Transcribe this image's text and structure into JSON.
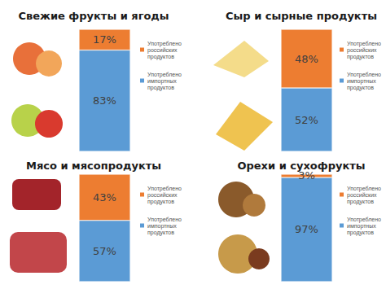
{
  "chart_data": [
    {
      "type": "bar",
      "title": "Свежие фрукты и ягоды",
      "stacked": true,
      "data_labels": true,
      "tick_labels": false,
      "legend": "right",
      "categories": [
        null
      ],
      "ylim": [
        0,
        100
      ],
      "series": [
        {
          "name": "Употреблено импортных продуктов",
          "color": "#5b9bd5",
          "values": [
            83
          ],
          "value_labels": [
            "83%"
          ]
        },
        {
          "name": "Употреблено российских продуктов",
          "color": "#ed7d31",
          "values": [
            17
          ],
          "value_labels": [
            "17%"
          ]
        }
      ]
    },
    {
      "type": "bar",
      "title": "Сыр и сырные продукты",
      "stacked": true,
      "data_labels": true,
      "tick_labels": false,
      "legend": "right",
      "categories": [
        null
      ],
      "ylim": [
        0,
        100
      ],
      "series": [
        {
          "name": "Употреблено импортных продуктов",
          "color": "#5b9bd5",
          "values": [
            52
          ],
          "value_labels": [
            "52%"
          ]
        },
        {
          "name": "Употреблено российских продуктов",
          "color": "#ed7d31",
          "values": [
            48
          ],
          "value_labels": [
            "48%"
          ]
        }
      ]
    },
    {
      "type": "bar",
      "title": "Мясо и мясопродукты",
      "stacked": true,
      "data_labels": true,
      "tick_labels": false,
      "legend": "right",
      "categories": [
        null
      ],
      "ylim": [
        0,
        100
      ],
      "series": [
        {
          "name": "Употреблено импортных продуктов",
          "color": "#5b9bd5",
          "values": [
            57
          ],
          "value_labels": [
            "57%"
          ]
        },
        {
          "name": "Употреблено российских продуктов",
          "color": "#ed7d31",
          "values": [
            43
          ],
          "value_labels": [
            "43%"
          ]
        }
      ]
    },
    {
      "type": "bar",
      "title": "Орехи и сухофрукты",
      "stacked": true,
      "data_labels": true,
      "tick_labels": false,
      "legend": "right",
      "categories": [
        null
      ],
      "ylim": [
        0,
        100
      ],
      "series": [
        {
          "name": "Употреблено импортных продуктов",
          "color": "#5b9bd5",
          "values": [
            97
          ],
          "value_labels": [
            "97%"
          ]
        },
        {
          "name": "Употреблено российских продуктов",
          "color": "#ed7d31",
          "values": [
            3
          ],
          "value_labels": [
            "3%"
          ]
        }
      ]
    }
  ]
}
